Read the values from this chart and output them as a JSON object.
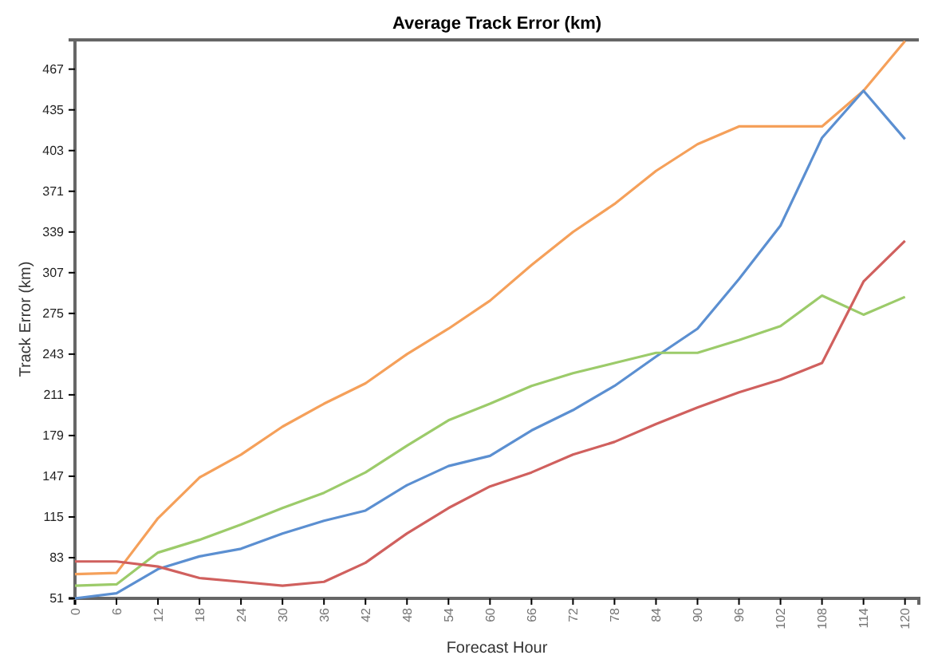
{
  "chart_data": {
    "type": "line",
    "title": "Average Track Error (km)",
    "xlabel": "Forecast Hour",
    "ylabel": "Track Error (km)",
    "x": [
      0,
      6,
      12,
      18,
      24,
      30,
      36,
      42,
      48,
      54,
      60,
      66,
      72,
      78,
      84,
      90,
      96,
      102,
      108,
      114,
      120
    ],
    "xlim": [
      0,
      122
    ],
    "xticks": [
      0,
      6,
      12,
      18,
      24,
      30,
      36,
      42,
      48,
      54,
      60,
      66,
      72,
      78,
      84,
      90,
      96,
      102,
      108,
      114,
      120
    ],
    "ylim": [
      51,
      490
    ],
    "yticks": [
      51,
      83,
      115,
      147,
      179,
      211,
      243,
      275,
      307,
      339,
      371,
      403,
      435,
      467
    ],
    "series": [
      {
        "color": "#f5a05a",
        "values": [
          70,
          71,
          114,
          146,
          164,
          186,
          204,
          220,
          243,
          263,
          285,
          313,
          339,
          361,
          387,
          408,
          422,
          422,
          422,
          450,
          489
        ]
      },
      {
        "color": "#5b8fd1",
        "values": [
          51,
          55,
          74,
          84,
          90,
          102,
          112,
          120,
          140,
          155,
          163,
          183,
          199,
          218,
          241,
          263,
          302,
          344,
          413,
          450,
          412
        ]
      },
      {
        "color": "#9ccb6a",
        "values": [
          61,
          62,
          87,
          97,
          109,
          122,
          134,
          150,
          171,
          191,
          204,
          218,
          228,
          236,
          244,
          244,
          254,
          265,
          289,
          274,
          288
        ]
      },
      {
        "color": "#d0605e",
        "values": [
          80,
          80,
          76,
          67,
          64,
          61,
          64,
          79,
          102,
          122,
          139,
          150,
          164,
          174,
          188,
          201,
          213,
          223,
          236,
          300,
          332
        ]
      }
    ]
  }
}
